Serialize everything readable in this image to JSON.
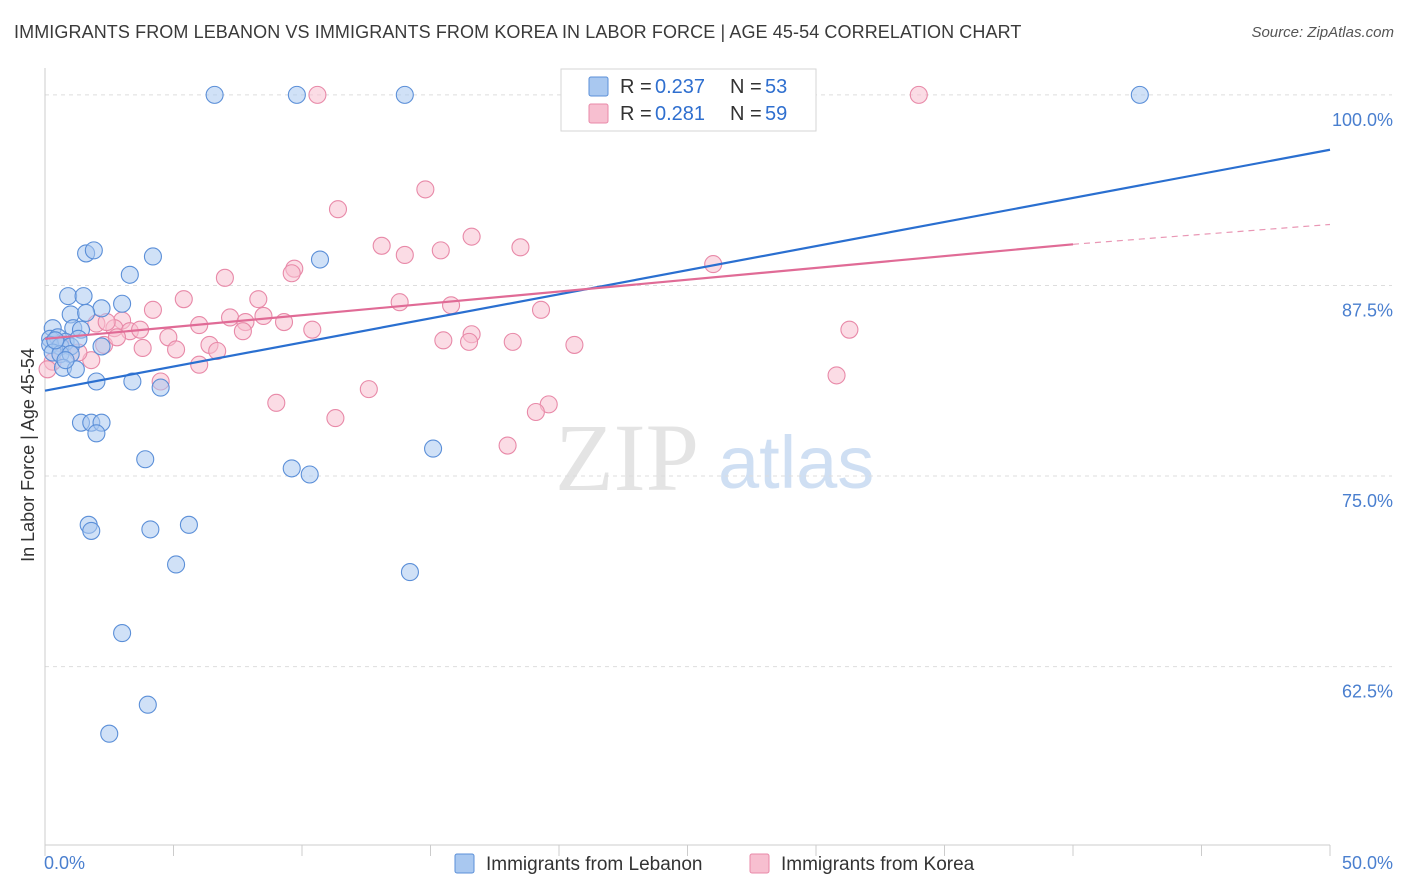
{
  "title": "IMMIGRANTS FROM LEBANON VS IMMIGRANTS FROM KOREA IN LABOR FORCE | AGE 45-54 CORRELATION CHART",
  "source": "Source: ZipAtlas.com",
  "watermark": {
    "zip": "ZIP",
    "atlas": "atlas"
  },
  "colors": {
    "lebanon_fill": "#a9c8f0",
    "lebanon_stroke": "#5b8fd8",
    "lebanon_line": "#2a6fd0",
    "korea_fill": "#f7bfd0",
    "korea_stroke": "#e889a8",
    "korea_line": "#e06b96",
    "tick_label": "#4a7fcf",
    "grid": "#dddddd"
  },
  "legend": {
    "rows": [
      {
        "r_label": "R =",
        "r_value": "0.237",
        "n_label": "N =",
        "n_value": "53"
      },
      {
        "r_label": "R =",
        "r_value": "0.281",
        "n_label": "N =",
        "n_value": "59"
      }
    ]
  },
  "chart_data": {
    "type": "scatter",
    "title": "IMMIGRANTS FROM LEBANON VS IMMIGRANTS FROM KOREA IN LABOR FORCE | AGE 45-54 CORRELATION CHART",
    "xlabel": "",
    "ylabel": "In Labor Force | Age 45-54",
    "xlim": [
      0,
      50
    ],
    "ylim": [
      50.8,
      101.5
    ],
    "x_tick_labels": [
      "0.0%",
      "50.0%"
    ],
    "y_ticks": [
      62.5,
      75.0,
      87.5,
      100.0
    ],
    "y_tick_labels": [
      "62.5%",
      "75.0%",
      "87.5%",
      "100.0%"
    ],
    "series": [
      {
        "name": "Immigrants from Lebanon",
        "points": [
          [
            6.6,
            100.0
          ],
          [
            9.8,
            100.0
          ],
          [
            14.0,
            100.0
          ],
          [
            42.6,
            100.0
          ],
          [
            1.6,
            89.6
          ],
          [
            1.9,
            89.8
          ],
          [
            4.2,
            89.4
          ],
          [
            10.7,
            89.2
          ],
          [
            3.3,
            88.2
          ],
          [
            0.9,
            86.8
          ],
          [
            1.5,
            86.8
          ],
          [
            3.0,
            86.3
          ],
          [
            2.2,
            86.0
          ],
          [
            1.0,
            85.6
          ],
          [
            1.6,
            85.7
          ],
          [
            0.3,
            84.7
          ],
          [
            1.1,
            84.7
          ],
          [
            1.4,
            84.6
          ],
          [
            0.2,
            84.0
          ],
          [
            0.5,
            84.1
          ],
          [
            0.8,
            83.8
          ],
          [
            0.2,
            83.6
          ],
          [
            0.6,
            83.5
          ],
          [
            1.0,
            83.5
          ],
          [
            2.2,
            83.5
          ],
          [
            0.3,
            83.1
          ],
          [
            0.6,
            83.0
          ],
          [
            1.0,
            83.0
          ],
          [
            0.7,
            82.1
          ],
          [
            1.2,
            82.0
          ],
          [
            2.0,
            81.2
          ],
          [
            3.4,
            81.2
          ],
          [
            4.5,
            80.8
          ],
          [
            1.4,
            78.5
          ],
          [
            1.8,
            78.5
          ],
          [
            2.2,
            78.5
          ],
          [
            2.0,
            77.8
          ],
          [
            15.1,
            76.8
          ],
          [
            3.9,
            76.1
          ],
          [
            9.6,
            75.5
          ],
          [
            10.3,
            75.1
          ],
          [
            1.7,
            71.8
          ],
          [
            1.8,
            71.4
          ],
          [
            4.1,
            71.5
          ],
          [
            5.6,
            71.8
          ],
          [
            5.1,
            69.2
          ],
          [
            14.2,
            68.7
          ],
          [
            3.0,
            64.7
          ],
          [
            4.0,
            60.0
          ],
          [
            2.5,
            58.1
          ],
          [
            0.8,
            82.6
          ],
          [
            1.3,
            84.0
          ],
          [
            0.4,
            83.9
          ]
        ]
      },
      {
        "name": "Immigrants from Korea",
        "points": [
          [
            10.6,
            100.0
          ],
          [
            34.0,
            100.0
          ],
          [
            14.8,
            93.8
          ],
          [
            11.4,
            92.5
          ],
          [
            16.6,
            90.7
          ],
          [
            13.1,
            90.1
          ],
          [
            18.5,
            90.0
          ],
          [
            14.0,
            89.5
          ],
          [
            15.4,
            89.8
          ],
          [
            9.7,
            88.6
          ],
          [
            9.6,
            88.3
          ],
          [
            26.0,
            88.9
          ],
          [
            7.0,
            88.0
          ],
          [
            5.4,
            86.6
          ],
          [
            8.3,
            86.6
          ],
          [
            13.8,
            86.4
          ],
          [
            15.8,
            86.2
          ],
          [
            19.3,
            85.9
          ],
          [
            4.2,
            85.9
          ],
          [
            7.2,
            85.4
          ],
          [
            8.5,
            85.5
          ],
          [
            3.0,
            85.2
          ],
          [
            6.0,
            84.9
          ],
          [
            7.8,
            85.1
          ],
          [
            9.3,
            85.1
          ],
          [
            2.0,
            85.0
          ],
          [
            2.7,
            84.7
          ],
          [
            3.3,
            84.5
          ],
          [
            3.7,
            84.6
          ],
          [
            7.7,
            84.5
          ],
          [
            10.4,
            84.6
          ],
          [
            31.3,
            84.6
          ],
          [
            4.8,
            84.1
          ],
          [
            16.6,
            84.3
          ],
          [
            6.4,
            83.6
          ],
          [
            15.5,
            83.9
          ],
          [
            16.5,
            83.8
          ],
          [
            18.2,
            83.8
          ],
          [
            20.6,
            83.6
          ],
          [
            2.3,
            83.6
          ],
          [
            3.8,
            83.4
          ],
          [
            5.1,
            83.3
          ],
          [
            6.7,
            83.2
          ],
          [
            1.8,
            82.6
          ],
          [
            6.0,
            82.3
          ],
          [
            0.3,
            82.5
          ],
          [
            4.5,
            81.2
          ],
          [
            30.8,
            81.6
          ],
          [
            12.6,
            80.7
          ],
          [
            9.0,
            79.8
          ],
          [
            19.6,
            79.7
          ],
          [
            11.3,
            78.8
          ],
          [
            19.1,
            79.2
          ],
          [
            18.0,
            77.0
          ],
          [
            0.1,
            82.0
          ],
          [
            1.3,
            83.1
          ],
          [
            2.8,
            84.1
          ],
          [
            0.6,
            83.7
          ],
          [
            2.4,
            85.1
          ]
        ]
      }
    ],
    "trendlines": [
      {
        "series": "Immigrants from Lebanon",
        "x": [
          0,
          50
        ],
        "y": [
          80.6,
          96.4
        ]
      },
      {
        "series": "Immigrants from Korea",
        "x": [
          0,
          40
        ],
        "y": [
          84.0,
          90.2
        ],
        "dashed_extension_x": [
          40,
          50
        ],
        "dashed_extension_y": [
          90.2,
          91.5
        ]
      }
    ],
    "legend": [
      "Immigrants from Lebanon",
      "Immigrants from Korea"
    ]
  },
  "bottom_legend": {
    "lebanon": "Immigrants from Lebanon",
    "korea": "Immigrants from Korea"
  }
}
